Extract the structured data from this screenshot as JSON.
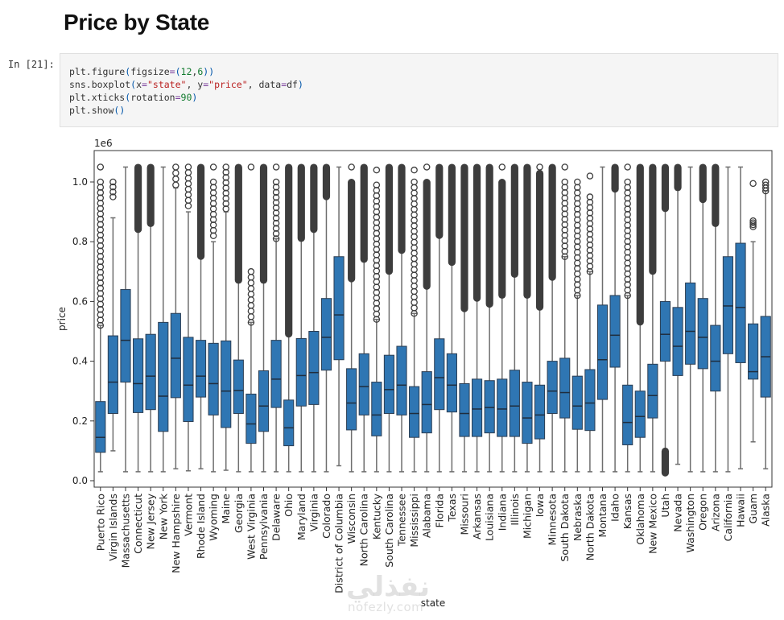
{
  "notebook": {
    "heading": "Price by State",
    "cell_prompt": "In [21]:",
    "code_lines": [
      [
        {
          "t": "plt.figure"
        },
        {
          "t": "(",
          "c": "paren"
        },
        {
          "t": "figsize"
        },
        {
          "t": "=",
          "c": "op"
        },
        {
          "t": "(",
          "c": "paren"
        },
        {
          "t": "12",
          "c": "num"
        },
        {
          "t": ","
        },
        {
          "t": "6",
          "c": "num"
        },
        {
          "t": "))",
          "c": "paren"
        }
      ],
      [
        {
          "t": "sns.boxplot"
        },
        {
          "t": "(",
          "c": "paren"
        },
        {
          "t": "x"
        },
        {
          "t": "=",
          "c": "op"
        },
        {
          "t": "\"state\"",
          "c": "str"
        },
        {
          "t": ", y"
        },
        {
          "t": "=",
          "c": "op"
        },
        {
          "t": "\"price\"",
          "c": "str"
        },
        {
          "t": ", data"
        },
        {
          "t": "=",
          "c": "op"
        },
        {
          "t": "df"
        },
        {
          "t": ")",
          "c": "paren"
        }
      ],
      [
        {
          "t": "plt.xticks"
        },
        {
          "t": "(",
          "c": "paren"
        },
        {
          "t": "rotation"
        },
        {
          "t": "=",
          "c": "op"
        },
        {
          "t": "90",
          "c": "num"
        },
        {
          "t": ")",
          "c": "paren"
        }
      ],
      [
        {
          "t": "plt.show"
        },
        {
          "t": "()",
          "c": "paren"
        }
      ]
    ],
    "watermark": {
      "arabic": "نفذلي",
      "latin": "nofezly.com"
    }
  },
  "chart_data": {
    "type": "box",
    "title": "",
    "xlabel": "state",
    "ylabel": "price",
    "y_scale_label": "1e6",
    "ylim": [
      -0.02,
      1.1
    ],
    "yticks": [
      0.0,
      0.2,
      0.4,
      0.6,
      0.8,
      1.0
    ],
    "ytick_labels": [
      "0.0",
      "0.2",
      "0.4",
      "0.6",
      "0.8",
      "1.0"
    ],
    "box_color": "#2f76b3",
    "outlier_color": "#3d3d3d",
    "unit_note": "values in millions (1e6)",
    "categories": [
      "Puerto Rico",
      "Virgin Islands",
      "Massachusetts",
      "Connecticut",
      "New Jersey",
      "New York",
      "New Hampshire",
      "Vermont",
      "Rhode Island",
      "Wyoming",
      "Maine",
      "Georgia",
      "West Virginia",
      "Pennsylvania",
      "Delaware",
      "Ohio",
      "Maryland",
      "Virginia",
      "Colorado",
      "District of Columbia",
      "Wisconsin",
      "North Carolina",
      "Kentucky",
      "South Carolina",
      "Tennessee",
      "Mississippi",
      "Alabama",
      "Florida",
      "Texas",
      "Missouri",
      "Arkansas",
      "Louisiana",
      "Indiana",
      "Illinois",
      "Michigan",
      "Iowa",
      "Minnesota",
      "South Dakota",
      "Nebraska",
      "North Dakota",
      "Montana",
      "Idaho",
      "Kansas",
      "Oklahoma",
      "New Mexico",
      "Utah",
      "Nevada",
      "Washington",
      "Oregon",
      "Arizona",
      "California",
      "Hawaii",
      "Guam",
      "Alaska"
    ],
    "boxes": [
      {
        "state": "Puerto Rico",
        "whislo": 0.03,
        "q1": 0.095,
        "med": 0.145,
        "q3": 0.265,
        "whishi": 0.52,
        "outliers": [
          0.52,
          1.0
        ],
        "outlier_max": 1.05,
        "sparse": true
      },
      {
        "state": "Virgin Islands",
        "whislo": 0.1,
        "q1": 0.225,
        "med": 0.33,
        "q3": 0.485,
        "whishi": 0.88,
        "outliers": [
          0.95,
          1.0
        ],
        "outlier_max": 1.0,
        "sparse": true
      },
      {
        "state": "Massachusetts",
        "whislo": 0.03,
        "q1": 0.33,
        "med": 0.47,
        "q3": 0.64,
        "whishi": 1.05,
        "outliers": null
      },
      {
        "state": "Connecticut",
        "whislo": 0.03,
        "q1": 0.228,
        "med": 0.325,
        "q3": 0.475,
        "whishi": 0.84,
        "outliers": [
          0.84,
          1.05
        ]
      },
      {
        "state": "New Jersey",
        "whislo": 0.03,
        "q1": 0.238,
        "med": 0.35,
        "q3": 0.49,
        "whishi": 0.86,
        "outliers": [
          0.86,
          1.05
        ]
      },
      {
        "state": "New York",
        "whislo": 0.03,
        "q1": 0.165,
        "med": 0.283,
        "q3": 0.53,
        "whishi": 1.05,
        "outliers": null
      },
      {
        "state": "New Hampshire",
        "whislo": 0.04,
        "q1": 0.278,
        "med": 0.41,
        "q3": 0.56,
        "whishi": 0.98,
        "outliers": [
          0.99,
          1.05
        ],
        "sparse": true
      },
      {
        "state": "Vermont",
        "whislo": 0.033,
        "q1": 0.198,
        "med": 0.32,
        "q3": 0.48,
        "whishi": 0.9,
        "outliers": [
          0.92,
          1.05
        ],
        "sparse": true
      },
      {
        "state": "Rhode Island",
        "whislo": 0.04,
        "q1": 0.28,
        "med": 0.35,
        "q3": 0.47,
        "whishi": 0.75,
        "outliers": [
          0.75,
          1.05
        ]
      },
      {
        "state": "Wyoming",
        "whislo": 0.03,
        "q1": 0.22,
        "med": 0.325,
        "q3": 0.46,
        "whishi": 0.8,
        "outliers": [
          0.82,
          1.0
        ],
        "outlier_max": 1.05,
        "sparse": true
      },
      {
        "state": "Maine",
        "whislo": 0.035,
        "q1": 0.178,
        "med": 0.3,
        "q3": 0.468,
        "whishi": 0.9,
        "outliers": [
          0.91,
          1.05
        ],
        "sparse": true
      },
      {
        "state": "Georgia",
        "whislo": 0.03,
        "q1": 0.225,
        "med": 0.302,
        "q3": 0.404,
        "whishi": 0.67,
        "outliers": [
          0.67,
          1.05
        ]
      },
      {
        "state": "West Virginia",
        "whislo": 0.03,
        "q1": 0.125,
        "med": 0.19,
        "q3": 0.29,
        "whishi": 0.53,
        "outliers": [
          0.53,
          0.7,
          0.8,
          1.0
        ],
        "outlier_max": 1.05,
        "sparse": true
      },
      {
        "state": "Pennsylvania",
        "whislo": 0.03,
        "q1": 0.165,
        "med": 0.25,
        "q3": 0.368,
        "whishi": 0.67,
        "outliers": [
          0.67,
          1.05
        ]
      },
      {
        "state": "Delaware",
        "whislo": 0.03,
        "q1": 0.245,
        "med": 0.34,
        "q3": 0.47,
        "whishi": 0.81,
        "outliers": [
          0.81,
          1.0
        ],
        "outlier_max": 1.05,
        "sparse": true
      },
      {
        "state": "Ohio",
        "whislo": 0.03,
        "q1": 0.117,
        "med": 0.177,
        "q3": 0.27,
        "whishi": 0.49,
        "outliers": [
          0.49,
          1.05
        ]
      },
      {
        "state": "Maryland",
        "whislo": 0.03,
        "q1": 0.25,
        "med": 0.352,
        "q3": 0.476,
        "whishi": 0.81,
        "outliers": [
          0.81,
          1.05
        ]
      },
      {
        "state": "Virginia",
        "whislo": 0.03,
        "q1": 0.255,
        "med": 0.362,
        "q3": 0.5,
        "whishi": 0.84,
        "outliers": [
          0.84,
          1.05
        ]
      },
      {
        "state": "Colorado",
        "whislo": 0.03,
        "q1": 0.37,
        "med": 0.48,
        "q3": 0.61,
        "whishi": 0.95,
        "outliers": [
          0.95,
          1.05
        ]
      },
      {
        "state": "District of Columbia",
        "whislo": 0.05,
        "q1": 0.405,
        "med": 0.555,
        "q3": 0.75,
        "whishi": 1.05,
        "outliers": null
      },
      {
        "state": "Wisconsin",
        "whislo": 0.03,
        "q1": 0.17,
        "med": 0.26,
        "q3": 0.375,
        "whishi": 0.675,
        "outliers": [
          0.675,
          1.0
        ],
        "outlier_max": 1.05
      },
      {
        "state": "North Carolina",
        "whislo": 0.03,
        "q1": 0.22,
        "med": 0.315,
        "q3": 0.425,
        "whishi": 0.74,
        "outliers": [
          0.74,
          1.05
        ]
      },
      {
        "state": "Kentucky",
        "whislo": 0.03,
        "q1": 0.15,
        "med": 0.22,
        "q3": 0.33,
        "whishi": 0.54,
        "outliers": [
          0.54,
          0.99
        ],
        "outlier_max": 1.04,
        "sparse": true
      },
      {
        "state": "South Carolina",
        "whislo": 0.03,
        "q1": 0.225,
        "med": 0.305,
        "q3": 0.42,
        "whishi": 0.7,
        "outliers": [
          0.7,
          1.05
        ]
      },
      {
        "state": "Tennessee",
        "whislo": 0.03,
        "q1": 0.22,
        "med": 0.32,
        "q3": 0.45,
        "whishi": 0.77,
        "outliers": [
          0.77,
          1.05
        ]
      },
      {
        "state": "Mississippi",
        "whislo": 0.03,
        "q1": 0.145,
        "med": 0.225,
        "q3": 0.315,
        "whishi": 0.56,
        "outliers": [
          0.56,
          1.0
        ],
        "outlier_max": 1.04,
        "sparse": true
      },
      {
        "state": "Alabama",
        "whislo": 0.03,
        "q1": 0.16,
        "med": 0.255,
        "q3": 0.365,
        "whishi": 0.65,
        "outliers": [
          0.65,
          1.0
        ],
        "outlier_max": 1.05
      },
      {
        "state": "Florida",
        "whislo": 0.03,
        "q1": 0.238,
        "med": 0.345,
        "q3": 0.475,
        "whishi": 0.82,
        "outliers": [
          0.82,
          1.05
        ]
      },
      {
        "state": "Texas",
        "whislo": 0.03,
        "q1": 0.23,
        "med": 0.32,
        "q3": 0.425,
        "whishi": 0.73,
        "outliers": [
          0.73,
          1.05
        ]
      },
      {
        "state": "Missouri",
        "whislo": 0.03,
        "q1": 0.148,
        "med": 0.225,
        "q3": 0.325,
        "whishi": 0.575,
        "outliers": [
          0.575,
          1.05
        ]
      },
      {
        "state": "Arkansas",
        "whislo": 0.03,
        "q1": 0.148,
        "med": 0.24,
        "q3": 0.34,
        "whishi": 0.61,
        "outliers": [
          0.61,
          1.05
        ]
      },
      {
        "state": "Louisiana",
        "whislo": 0.03,
        "q1": 0.16,
        "med": 0.245,
        "q3": 0.335,
        "whishi": 0.59,
        "outliers": [
          0.59,
          1.05
        ]
      },
      {
        "state": "Indiana",
        "whislo": 0.03,
        "q1": 0.148,
        "med": 0.24,
        "q3": 0.34,
        "whishi": 0.62,
        "outliers": [
          0.62,
          1.0
        ],
        "outlier_max": 1.05
      },
      {
        "state": "Illinois",
        "whislo": 0.03,
        "q1": 0.148,
        "med": 0.25,
        "q3": 0.37,
        "whishi": 0.69,
        "outliers": [
          0.69,
          1.05
        ]
      },
      {
        "state": "Michigan",
        "whislo": 0.03,
        "q1": 0.125,
        "med": 0.21,
        "q3": 0.33,
        "whishi": 0.62,
        "outliers": [
          0.62,
          1.05
        ]
      },
      {
        "state": "Iowa",
        "whislo": 0.03,
        "q1": 0.14,
        "med": 0.22,
        "q3": 0.32,
        "whishi": 0.58,
        "outliers": [
          0.58,
          1.03
        ],
        "outlier_max": 1.05
      },
      {
        "state": "Minnesota",
        "whislo": 0.03,
        "q1": 0.225,
        "med": 0.3,
        "q3": 0.4,
        "whishi": 0.68,
        "outliers": [
          0.68,
          1.05
        ]
      },
      {
        "state": "South Dakota",
        "whislo": 0.03,
        "q1": 0.21,
        "med": 0.295,
        "q3": 0.41,
        "whishi": 0.75,
        "outliers": [
          0.75,
          1.0
        ],
        "outlier_max": 1.05,
        "sparse": true
      },
      {
        "state": "Nebraska",
        "whislo": 0.03,
        "q1": 0.172,
        "med": 0.25,
        "q3": 0.35,
        "whishi": 0.62,
        "outliers": [
          0.62,
          1.0
        ],
        "outlier_max": 1.0,
        "sparse": true
      },
      {
        "state": "North Dakota",
        "whislo": 0.03,
        "q1": 0.168,
        "med": 0.26,
        "q3": 0.372,
        "whishi": 0.7,
        "outliers": [
          0.7,
          0.95
        ],
        "outlier_max": 1.02,
        "sparse": true
      },
      {
        "state": "Montana",
        "whislo": 0.03,
        "q1": 0.272,
        "med": 0.405,
        "q3": 0.588,
        "whishi": 1.05,
        "outliers": null
      },
      {
        "state": "Idaho",
        "whislo": 0.03,
        "q1": 0.38,
        "med": 0.487,
        "q3": 0.62,
        "whishi": 0.975,
        "outliers": [
          0.975,
          1.05
        ]
      },
      {
        "state": "Kansas",
        "whislo": 0.03,
        "q1": 0.12,
        "med": 0.195,
        "q3": 0.32,
        "whishi": 0.62,
        "outliers": [
          0.62,
          1.0
        ],
        "outlier_max": 1.05,
        "sparse": true
      },
      {
        "state": "Oklahoma",
        "whislo": 0.03,
        "q1": 0.145,
        "med": 0.215,
        "q3": 0.3,
        "whishi": 0.53,
        "outliers": [
          0.53,
          1.05
        ]
      },
      {
        "state": "New Mexico",
        "whislo": 0.03,
        "q1": 0.21,
        "med": 0.285,
        "q3": 0.39,
        "whishi": 0.7,
        "outliers": [
          0.7,
          1.05
        ]
      },
      {
        "state": "Utah",
        "whislo": 0.1,
        "q1": 0.4,
        "med": 0.49,
        "q3": 0.6,
        "whishi": 0.91,
        "outliers": [
          0.91,
          1.05
        ],
        "low_outliers": [
          0.025,
          0.1
        ]
      },
      {
        "state": "Nevada",
        "whislo": 0.055,
        "q1": 0.352,
        "med": 0.45,
        "q3": 0.58,
        "whishi": 0.98,
        "outliers": [
          0.98,
          1.05
        ]
      },
      {
        "state": "Washington",
        "whislo": 0.03,
        "q1": 0.39,
        "med": 0.5,
        "q3": 0.662,
        "whishi": 1.05,
        "outliers": null
      },
      {
        "state": "Oregon",
        "whislo": 0.03,
        "q1": 0.375,
        "med": 0.48,
        "q3": 0.61,
        "whishi": 0.94,
        "outliers": [
          0.94,
          1.05
        ]
      },
      {
        "state": "Arizona",
        "whislo": 0.03,
        "q1": 0.3,
        "med": 0.4,
        "q3": 0.52,
        "whishi": 0.86,
        "outliers": [
          0.86,
          1.05
        ]
      },
      {
        "state": "California",
        "whislo": 0.03,
        "q1": 0.425,
        "med": 0.585,
        "q3": 0.75,
        "whishi": 1.05,
        "outliers": null
      },
      {
        "state": "Hawaii",
        "whislo": 0.04,
        "q1": 0.395,
        "med": 0.58,
        "q3": 0.795,
        "whishi": 1.05,
        "outliers": null
      },
      {
        "state": "Guam",
        "whislo": 0.13,
        "q1": 0.34,
        "med": 0.365,
        "q3": 0.525,
        "whishi": 0.8,
        "outliers": [
          0.85,
          0.87,
          0.98,
          0.995
        ],
        "outlier_max": 0.995,
        "sparse": true
      },
      {
        "state": "Alaska",
        "whislo": 0.04,
        "q1": 0.28,
        "med": 0.415,
        "q3": 0.55,
        "whishi": 0.97,
        "outliers": [
          0.97,
          1.0
        ],
        "outlier_max": 1.0,
        "sparse": true
      }
    ]
  }
}
